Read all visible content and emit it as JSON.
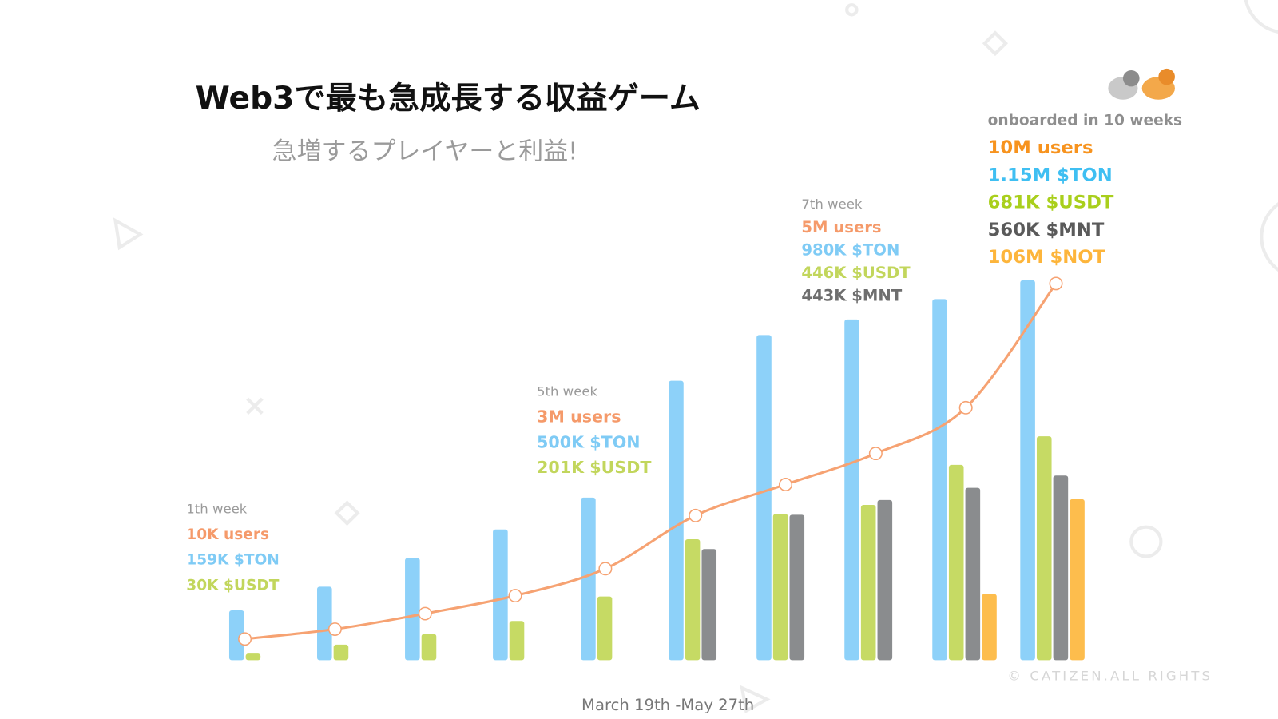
{
  "chart_data": {
    "type": "bar",
    "title": "Web3で最も急成長する収益ゲーム",
    "subtitle": "急増するプレイヤーと利益!",
    "x_label": "March 19th -May 27th",
    "watermark": "© CATIZEN.ALL RIGHTS",
    "categories": [
      null,
      null,
      null,
      null,
      null,
      null,
      null,
      null,
      null,
      null
    ],
    "series": [
      {
        "color": "#8dd1f9",
        "values": [
          61,
          90,
          125,
          160,
          199,
          342,
          398,
          417,
          442,
          465
        ]
      },
      {
        "color": "#c6da64",
        "values": [
          8,
          19,
          32,
          48,
          78,
          148,
          179,
          190,
          239,
          274
        ]
      },
      {
        "color": "#8a8c8e",
        "values": [
          null,
          null,
          null,
          null,
          null,
          136,
          178,
          196,
          211,
          226
        ]
      },
      {
        "color": "#fdbd4d",
        "values": [
          null,
          null,
          null,
          null,
          null,
          null,
          null,
          null,
          81,
          197
        ]
      }
    ],
    "line": {
      "color": "#f6a272",
      "values": [
        26,
        38,
        57,
        79,
        112,
        177,
        215,
        253,
        309,
        461
      ]
    },
    "annotations": [
      {
        "lines": [
          {
            "text": "1th week",
            "color": "#9a9a9a"
          },
          {
            "text": "10K users",
            "color": "#f59a6a"
          },
          {
            "text": "159K $TON",
            "color": "#7fcbf5"
          },
          {
            "text": "30K $USDT",
            "color": "#c2d65c"
          }
        ]
      },
      {
        "lines": [
          {
            "text": "5th week",
            "color": "#9a9a9a"
          },
          {
            "text": "3M users",
            "color": "#f59a6a"
          },
          {
            "text": "500K $TON",
            "color": "#7fcbf5"
          },
          {
            "text": "201K $USDT",
            "color": "#c2d65c"
          }
        ]
      },
      {
        "lines": [
          {
            "text": "7th week",
            "color": "#9a9a9a"
          },
          {
            "text": "5M users",
            "color": "#f59a6a"
          },
          {
            "text": "980K $TON",
            "color": "#7fcbf5"
          },
          {
            "text": "446K $USDT",
            "color": "#c2d65c"
          },
          {
            "text": "443K $MNT",
            "color": "#6e6e6e"
          }
        ]
      },
      {
        "lines": [
          {
            "text": "onboarded in 10 weeks",
            "color": "#8e8e8e"
          },
          {
            "text": "10M users",
            "color": "#f7931e"
          },
          {
            "text": "1.15M $TON",
            "color": "#3fbff2"
          },
          {
            "text": "681K $USDT",
            "color": "#a9cf1c"
          },
          {
            "text": "560K $MNT",
            "color": "#5a5a5a"
          },
          {
            "text": "106M $NOT",
            "color": "#fdb53b"
          }
        ]
      }
    ]
  }
}
